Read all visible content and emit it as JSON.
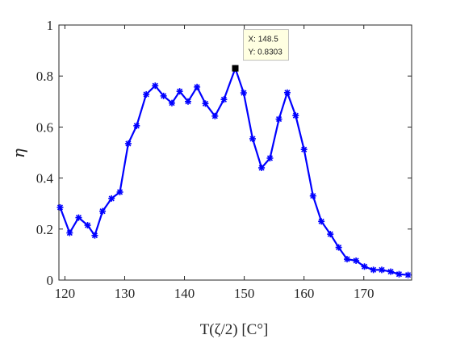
{
  "chart_data": {
    "type": "line",
    "xlabel": "T(ζ/2) [C°]",
    "ylabel": "η",
    "xlim": [
      119,
      178
    ],
    "ylim": [
      0,
      1
    ],
    "x_ticks": [
      120,
      130,
      140,
      150,
      160,
      170
    ],
    "y_ticks": [
      0,
      0.2,
      0.4,
      0.6,
      0.8,
      1
    ],
    "x_tick_labels": [
      "120",
      "130",
      "140",
      "150",
      "160",
      "170"
    ],
    "y_tick_labels": [
      "0",
      "0.2",
      "0.4",
      "0.6",
      "0.8",
      "1"
    ],
    "grid": false,
    "series": [
      {
        "color": "#0000ff",
        "marker": "asterisk",
        "x": [
          119.2,
          120.8,
          122.3,
          123.8,
          125.0,
          126.3,
          127.8,
          129.2,
          130.6,
          132.0,
          133.6,
          135.1,
          136.5,
          137.9,
          139.2,
          140.6,
          142.1,
          143.5,
          145.1,
          146.6,
          148.5,
          149.9,
          151.4,
          152.9,
          154.3,
          155.8,
          157.2,
          158.6,
          160.0,
          161.5,
          162.9,
          164.4,
          165.8,
          167.2,
          168.7,
          170.1,
          171.6,
          173.0,
          174.5,
          175.9,
          177.4
        ],
        "y": [
          0.285,
          0.185,
          0.245,
          0.215,
          0.175,
          0.27,
          0.32,
          0.345,
          0.535,
          0.605,
          0.728,
          0.762,
          0.722,
          0.694,
          0.74,
          0.7,
          0.757,
          0.692,
          0.643,
          0.708,
          0.83,
          0.734,
          0.554,
          0.44,
          0.478,
          0.631,
          0.735,
          0.645,
          0.512,
          0.33,
          0.23,
          0.18,
          0.128,
          0.082,
          0.076,
          0.053,
          0.04,
          0.04,
          0.033,
          0.023,
          0.02
        ]
      }
    ],
    "datatip": {
      "x_text": "X: 148.5",
      "y_text": "Y: 0.8303",
      "x": 148.5,
      "y": 0.8303
    },
    "colors": {
      "line": "#0000ff",
      "axes": "#262626",
      "tip_fill": "#ffffe1"
    }
  }
}
